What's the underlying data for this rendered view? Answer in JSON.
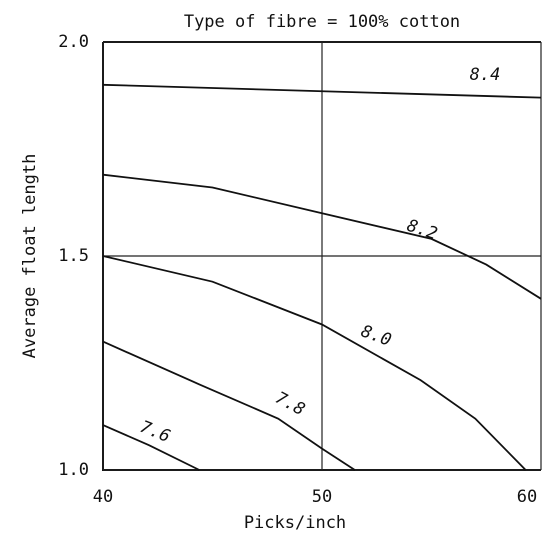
{
  "chart_data": {
    "type": "contour",
    "title": "Type of fibre = 100% cotton",
    "xlabel": "Picks/inch",
    "ylabel": "Average float length",
    "xlim": [
      40,
      60
    ],
    "ylim": [
      1.0,
      2.0
    ],
    "xticks": [
      40,
      50,
      60
    ],
    "yticks": [
      {
        "value": 1.0,
        "label": "1.0"
      },
      {
        "value": 1.5,
        "label": "1.5"
      },
      {
        "value": 2.0,
        "label": "2.0"
      }
    ],
    "grid": true,
    "color": "#111111",
    "series": [
      {
        "name": "8.4",
        "x": [
          40,
          60
        ],
        "values": [
          1.9,
          1.87
        ]
      },
      {
        "name": "8.2",
        "x": [
          40,
          45,
          50,
          55,
          57.5,
          60
        ],
        "values": [
          1.69,
          1.66,
          1.6,
          1.54,
          1.48,
          1.4
        ]
      },
      {
        "name": "8.0",
        "x": [
          40,
          45,
          50,
          54.5,
          57,
          59.3
        ],
        "values": [
          1.5,
          1.44,
          1.34,
          1.21,
          1.12,
          1.0
        ]
      },
      {
        "name": "7.8",
        "x": [
          40,
          44.4,
          48,
          50,
          51.5
        ],
        "values": [
          1.3,
          1.2,
          1.12,
          1.05,
          1.0
        ]
      },
      {
        "name": "7.6",
        "x": [
          40,
          42.1,
          44.4
        ],
        "values": [
          1.105,
          1.058,
          1.0
        ]
      }
    ]
  }
}
